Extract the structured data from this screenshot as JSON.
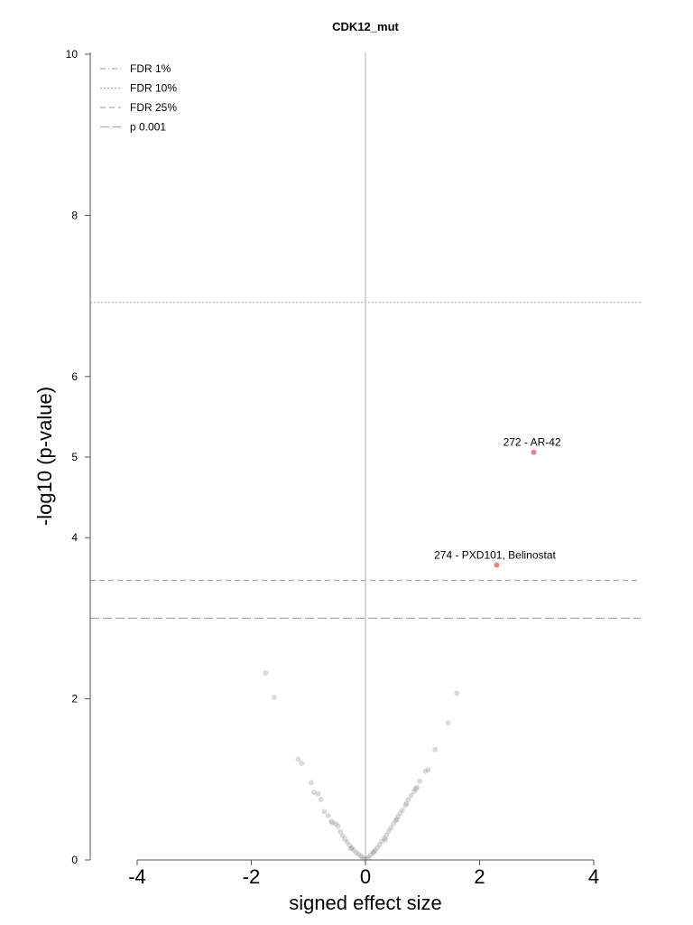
{
  "chart_data": {
    "type": "scatter",
    "title": "CDK12_mut",
    "xlabel": "signed effect size",
    "ylabel": "-log10 (p-value)",
    "xlim": [
      -4,
      4
    ],
    "ylim": [
      0,
      10
    ],
    "x_ticks": [
      "-4",
      "-2",
      "0",
      "2",
      "4"
    ],
    "y_ticks": [
      "0",
      "2",
      "4",
      "5",
      "6",
      "8",
      "10"
    ],
    "x_tick_values": [
      -4,
      -2,
      0,
      2,
      4
    ],
    "y_tick_values": [
      0,
      2,
      4,
      5,
      6,
      8,
      10
    ],
    "legend": {
      "position": "top-left",
      "entries": [
        {
          "label": "FDR 1%",
          "dash": "6,3,1,3"
        },
        {
          "label": "FDR 10%",
          "dash": "2,2"
        },
        {
          "label": "FDR 25%",
          "dash": "6,4"
        },
        {
          "label": "p 0.001",
          "dash": "10,4"
        }
      ]
    },
    "threshold_lines": [
      {
        "y": 6.92,
        "dash": "2,2",
        "color": "#bbbbbb"
      },
      {
        "y": 3.47,
        "dash": "6,4",
        "color": "#aaaaaa"
      },
      {
        "y": 3.0,
        "dash": "10,4",
        "color": "#aaaaaa"
      }
    ],
    "vertical_line": {
      "x": 0,
      "color": "#c8c8c8"
    },
    "highlighted_points": [
      {
        "x": 2.95,
        "y": 5.06,
        "label": "272 - AR-42",
        "color": "#f08080"
      },
      {
        "x": 2.3,
        "y": 3.66,
        "label": "274 - PXD101, Belinostat",
        "color": "#f08080"
      }
    ],
    "background_points": [
      [
        -1.75,
        2.32
      ],
      [
        -1.6,
        2.02
      ],
      [
        -1.18,
        1.25
      ],
      [
        -1.12,
        1.2
      ],
      [
        -0.95,
        0.96
      ],
      [
        -0.9,
        0.84
      ],
      [
        -0.83,
        0.82
      ],
      [
        -0.78,
        0.75
      ],
      [
        -0.72,
        0.6
      ],
      [
        -0.65,
        0.55
      ],
      [
        -0.58,
        0.46
      ],
      [
        -0.52,
        0.45
      ],
      [
        -0.48,
        0.42
      ],
      [
        -0.44,
        0.35
      ],
      [
        -0.4,
        0.3
      ],
      [
        -0.36,
        0.26
      ],
      [
        -0.32,
        0.22
      ],
      [
        -0.28,
        0.18
      ],
      [
        -0.24,
        0.15
      ],
      [
        -0.2,
        0.12
      ],
      [
        -0.16,
        0.09
      ],
      [
        -0.12,
        0.07
      ],
      [
        -0.08,
        0.05
      ],
      [
        -0.05,
        0.03
      ],
      [
        -0.02,
        0.01
      ],
      [
        0.02,
        0.02
      ],
      [
        0.05,
        0.03
      ],
      [
        0.09,
        0.06
      ],
      [
        0.13,
        0.09
      ],
      [
        0.17,
        0.12
      ],
      [
        0.21,
        0.15
      ],
      [
        0.25,
        0.19
      ],
      [
        0.29,
        0.23
      ],
      [
        0.33,
        0.27
      ],
      [
        0.37,
        0.31
      ],
      [
        0.41,
        0.36
      ],
      [
        0.45,
        0.4
      ],
      [
        0.49,
        0.45
      ],
      [
        0.53,
        0.49
      ],
      [
        0.57,
        0.54
      ],
      [
        0.61,
        0.58
      ],
      [
        0.65,
        0.62
      ],
      [
        0.7,
        0.68
      ],
      [
        0.75,
        0.75
      ],
      [
        0.8,
        0.8
      ],
      [
        0.85,
        0.85
      ],
      [
        0.9,
        0.9
      ],
      [
        0.95,
        0.98
      ],
      [
        1.05,
        1.1
      ],
      [
        1.1,
        1.12
      ],
      [
        1.22,
        1.37
      ],
      [
        1.45,
        1.7
      ],
      [
        1.6,
        2.07
      ],
      [
        0.35,
        0.25
      ],
      [
        0.55,
        0.5
      ],
      [
        0.72,
        0.7
      ],
      [
        0.88,
        0.88
      ],
      [
        -0.6,
        0.48
      ],
      [
        -0.25,
        0.14
      ],
      [
        0.15,
        0.1
      ]
    ]
  }
}
